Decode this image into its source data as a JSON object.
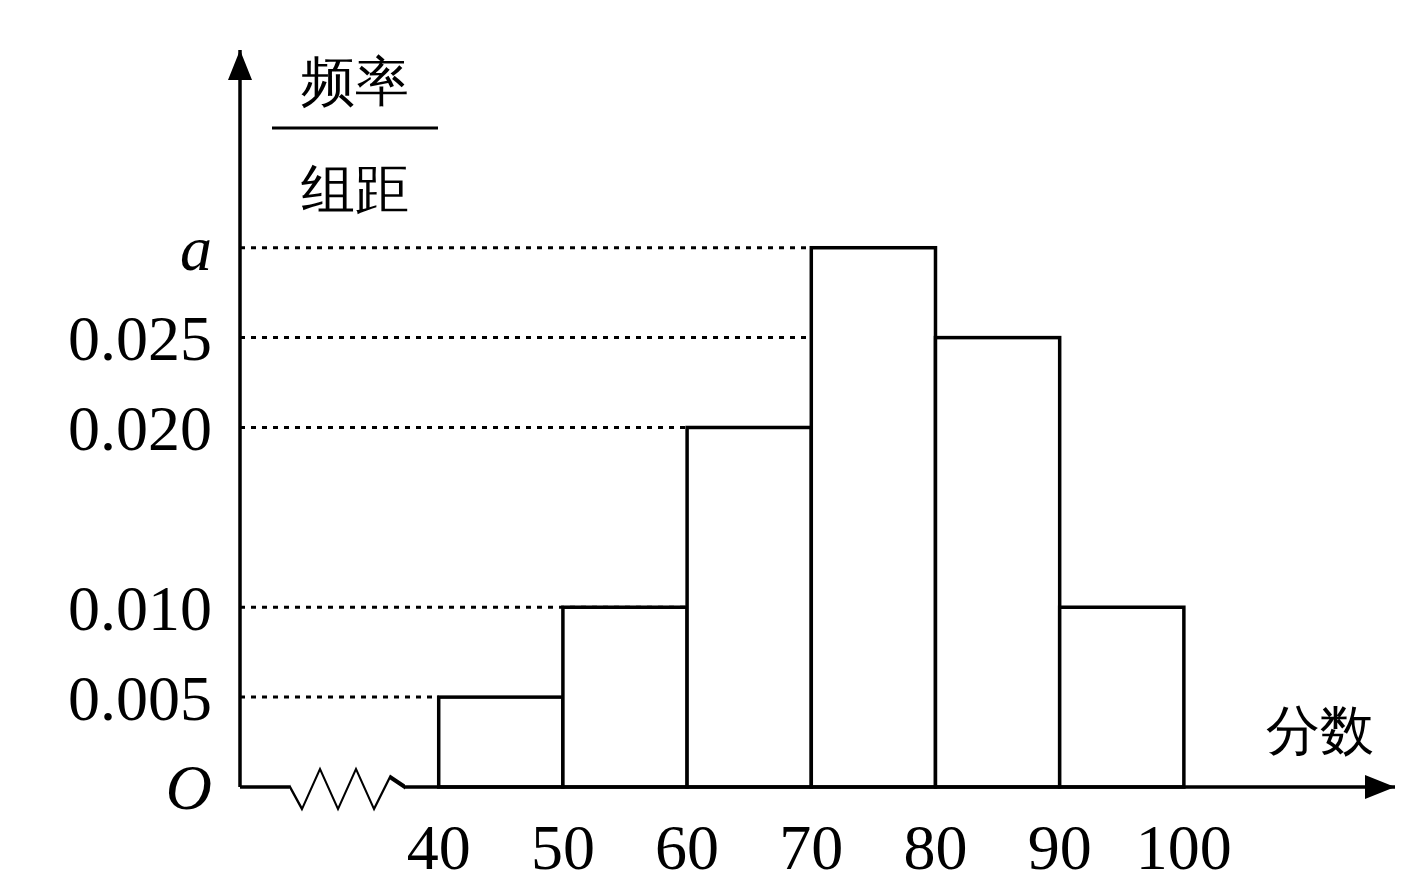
{
  "chart_data": {
    "type": "histogram",
    "xlabel": "分数",
    "ylabel": "频率组距",
    "bins": [
      40,
      50,
      60,
      70,
      80,
      90,
      100
    ],
    "values": [
      0.005,
      0.01,
      0.02,
      0.03,
      0.025,
      0.01
    ],
    "color": "#ffffff",
    "xlim": [
      24,
      117
    ],
    "ylim": [
      0,
      0.041
    ],
    "xticks": [
      40,
      50,
      60,
      70,
      80,
      90,
      100
    ],
    "yticks": [
      {
        "value": 0,
        "label": "O"
      },
      {
        "value": 0.005,
        "label": "0.005"
      },
      {
        "value": 0.01,
        "label": "0.010"
      },
      {
        "value": 0.02,
        "label": "0.020"
      },
      {
        "value": 0.025,
        "label": "0.025"
      },
      {
        "value": 0.03,
        "label": "a"
      }
    ],
    "ref_lines": [
      {
        "axis": "y",
        "value": 0.005,
        "line_style": "dotted"
      },
      {
        "axis": "y",
        "value": 0.01,
        "line_style": "dotted"
      },
      {
        "axis": "y",
        "value": 0.02,
        "line_style": "dotted"
      },
      {
        "axis": "y",
        "value": 0.025,
        "line_style": "dotted"
      },
      {
        "axis": "y",
        "value": 0.03,
        "line_style": "dotted"
      }
    ]
  }
}
